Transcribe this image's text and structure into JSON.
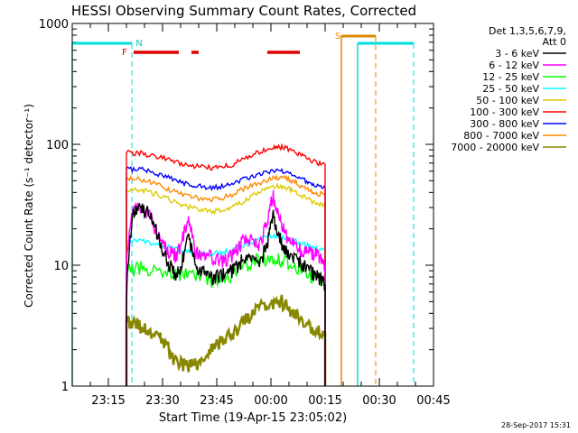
{
  "chart_data": {
    "type": "line",
    "title": "HESSI Observing Summary Count Rates, Corrected",
    "xlabel": "Start Time (19-Apr-15 23:05:02)",
    "ylabel": "Corrected Count Rate (s⁻¹ detector⁻¹)",
    "x_unit": "minutes after 23:05:02",
    "xlim": [
      0,
      100
    ],
    "ylim": [
      1,
      1000
    ],
    "y_scale": "log",
    "x_ticks": [
      {
        "value": 10,
        "label": "23:15"
      },
      {
        "value": 25,
        "label": "23:30"
      },
      {
        "value": 40,
        "label": "23:45"
      },
      {
        "value": 55,
        "label": "00:00"
      },
      {
        "value": 70,
        "label": "00:15"
      },
      {
        "value": 85,
        "label": "00:30"
      },
      {
        "value": 100,
        "label": "00:45"
      }
    ],
    "y_ticks": [
      {
        "value": 1,
        "label": "1"
      },
      {
        "value": 10,
        "label": "10"
      },
      {
        "value": 100,
        "label": "100"
      },
      {
        "value": 1000,
        "label": "1000"
      }
    ],
    "legend": {
      "position": "right",
      "header": [
        "Det 1,3,5,6,7,9,",
        "Att 0"
      ]
    },
    "series": [
      {
        "name": "3 - 6 keV",
        "color": "#000000",
        "x": [
          15,
          17,
          19,
          21,
          23,
          25,
          27,
          28.5,
          30,
          32,
          34,
          36,
          38,
          40,
          42,
          44,
          46,
          48,
          50,
          52,
          54,
          55.5,
          57,
          58.5,
          60,
          62,
          64,
          66,
          68,
          70
        ],
        "y": [
          5,
          28,
          30,
          27,
          20,
          13,
          10,
          8.5,
          9,
          17,
          10,
          9,
          8,
          8,
          8.5,
          9,
          10,
          12,
          11,
          10,
          15,
          26,
          18,
          14,
          12,
          11,
          10,
          9,
          8,
          7
        ]
      },
      {
        "name": "6 - 12 keV",
        "color": "#ff00ff",
        "x": [
          15,
          17,
          19,
          21,
          23,
          25,
          27,
          28.5,
          30,
          32,
          34,
          36,
          38,
          40,
          42,
          44,
          46,
          48,
          50,
          52,
          54,
          55.5,
          57,
          58.5,
          60,
          62,
          64,
          66,
          68,
          70
        ],
        "y": [
          10,
          32,
          30,
          27,
          20,
          15,
          13,
          12,
          14,
          24,
          13,
          12,
          12,
          11,
          11,
          12,
          14,
          17,
          16,
          15,
          22,
          38,
          26,
          20,
          16,
          14,
          13,
          13,
          12,
          10
        ]
      },
      {
        "name": "12 - 25 keV",
        "color": "#00ff00",
        "x": [
          15,
          19,
          23,
          27,
          31,
          35,
          39,
          43,
          47,
          51,
          55,
          58,
          61,
          64,
          67,
          70
        ],
        "y": [
          9,
          9.5,
          9,
          8.5,
          8.5,
          8,
          7.5,
          8,
          9.5,
          11,
          11.5,
          11,
          10,
          9,
          8,
          7.5
        ]
      },
      {
        "name": "25 - 50 keV",
        "color": "#00ffff",
        "x": [
          15,
          19,
          23,
          27,
          31,
          35,
          39,
          43,
          47,
          51,
          55,
          58,
          61,
          64,
          67,
          70
        ],
        "y": [
          16,
          16,
          15,
          14,
          13,
          12.5,
          12.5,
          13,
          14.5,
          16,
          17.5,
          17,
          16,
          15,
          14,
          13
        ]
      },
      {
        "name": "50 - 100 keV",
        "color": "#ddcc00",
        "x": [
          15,
          19,
          23,
          27,
          31,
          35,
          39,
          43,
          47,
          51,
          55,
          58,
          61,
          64,
          67,
          70
        ],
        "y": [
          42,
          42,
          39,
          35,
          31,
          29,
          28,
          29,
          33,
          39,
          44,
          45,
          42,
          37,
          33,
          31
        ]
      },
      {
        "name": "100 - 300 keV",
        "color": "#ff0000",
        "x": [
          15,
          19,
          23,
          27,
          31,
          35,
          39,
          43,
          47,
          51,
          55,
          58,
          61,
          64,
          67,
          70
        ],
        "y": [
          85,
          84,
          80,
          74,
          68,
          65,
          64,
          66,
          74,
          85,
          94,
          95,
          88,
          79,
          72,
          68
        ]
      },
      {
        "name": "300 - 800 keV",
        "color": "#0000ff",
        "x": [
          15,
          19,
          23,
          27,
          31,
          35,
          39,
          43,
          47,
          51,
          55,
          58,
          61,
          64,
          67,
          70
        ],
        "y": [
          63,
          62,
          58,
          53,
          48,
          45,
          44,
          46,
          51,
          56,
          60,
          61,
          57,
          51,
          47,
          44
        ]
      },
      {
        "name": "800 - 7000 keV",
        "color": "#ff8800",
        "x": [
          15,
          19,
          23,
          27,
          31,
          35,
          39,
          43,
          47,
          51,
          55,
          58,
          61,
          64,
          67,
          70
        ],
        "y": [
          52,
          51,
          47,
          42,
          38,
          36,
          35,
          37,
          42,
          47,
          52,
          53,
          50,
          44,
          40,
          38
        ]
      },
      {
        "name": "7000 - 20000 keV",
        "color": "#888800",
        "x": [
          15,
          18,
          21,
          24,
          26,
          28,
          31,
          34,
          37,
          40,
          43,
          46,
          49,
          52,
          55,
          58,
          61,
          64,
          67,
          70
        ],
        "y": [
          3.5,
          3.2,
          2.8,
          2.5,
          2.2,
          1.6,
          1.5,
          1.5,
          1.8,
          2.2,
          2.6,
          3.0,
          3.8,
          4.6,
          5.0,
          5.0,
          4.2,
          3.5,
          3.0,
          2.8
        ]
      }
    ],
    "annotations": [
      {
        "text": "F",
        "color": "#cc0000"
      },
      {
        "text": "N",
        "color": "#00cccc"
      },
      {
        "text": "S",
        "color": "#ff8800"
      }
    ],
    "footer_date": "28-Sep-2017 15:31"
  }
}
